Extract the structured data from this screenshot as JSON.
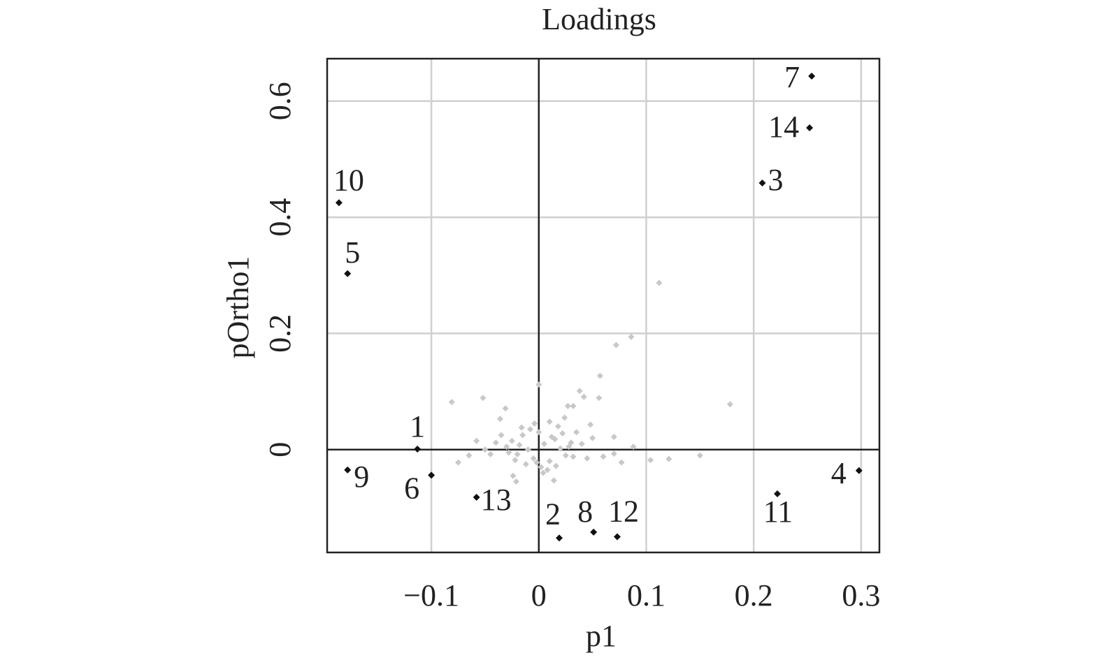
{
  "chart_data": {
    "type": "scatter",
    "title": "Loadings",
    "xlabel": "p1",
    "ylabel": "pOrtho1",
    "xlim": [
      -0.197,
      0.317
    ],
    "ylim": [
      -0.177,
      0.673
    ],
    "xticks": [
      {
        "value": -0.1,
        "label": "−0.1"
      },
      0,
      0.1,
      0.2,
      0.3
    ],
    "yticks": [
      0,
      0.2,
      0.4,
      0.6
    ],
    "grid": true,
    "series": [
      {
        "color": "#c8c8c8",
        "x": [
          0.112,
          0.178,
          0.15,
          0.121,
          0.104,
          0.086,
          0.072,
          0.057,
          0.0,
          -0.081,
          -0.052,
          0.038,
          0.056,
          0.042,
          0.07,
          0.088,
          0.077,
          0.07,
          -0.075,
          -0.065,
          -0.021,
          -0.036,
          -0.031,
          0.027,
          0.032,
          0.048,
          0.014,
          -0.03,
          -0.025,
          -0.02,
          -0.015,
          -0.01,
          -0.005,
          0.0,
          0.005,
          0.01,
          0.015,
          0.02,
          0.025,
          0.03,
          -0.028,
          -0.018,
          -0.008,
          0.002,
          0.012,
          0.022,
          0.032,
          -0.022,
          -0.012,
          0.008,
          0.018,
          0.028,
          0.04,
          0.045,
          -0.04,
          -0.045,
          0.035,
          -0.035,
          0.004,
          -0.004,
          0.016,
          -0.016,
          0.05,
          -0.05,
          0.06,
          -0.058,
          0.024,
          -0.024,
          0.01,
          -0.002
        ],
        "values": [
          0.287,
          0.078,
          -0.01,
          -0.016,
          -0.018,
          0.194,
          0.18,
          0.127,
          0.112,
          0.082,
          0.089,
          0.101,
          0.089,
          0.091,
          0.022,
          0.005,
          -0.022,
          -0.007,
          -0.022,
          -0.01,
          -0.055,
          0.053,
          0.071,
          0.075,
          0.075,
          0.043,
          -0.053,
          0.005,
          0.015,
          -0.008,
          0.025,
          0.0,
          -0.015,
          0.03,
          0.01,
          -0.02,
          0.018,
          0.002,
          -0.01,
          0.012,
          -0.005,
          0.008,
          0.035,
          -0.03,
          0.022,
          0.028,
          -0.012,
          -0.018,
          -0.025,
          -0.035,
          0.04,
          0.005,
          0.01,
          -0.015,
          0.012,
          -0.008,
          0.03,
          0.025,
          -0.04,
          0.045,
          -0.028,
          0.038,
          0.02,
          0.0,
          -0.012,
          0.015,
          0.055,
          -0.045,
          0.048,
          -0.022
        ]
      },
      {
        "color": "#111111",
        "x": [
          -0.113,
          0.019,
          0.208,
          0.298,
          -0.178,
          -0.1,
          0.254,
          0.051,
          -0.178,
          -0.186,
          0.222,
          0.073,
          -0.058,
          0.252
        ],
        "values": [
          0.001,
          -0.152,
          0.459,
          -0.036,
          0.303,
          -0.044,
          0.643,
          -0.142,
          -0.035,
          0.425,
          -0.076,
          -0.15,
          -0.082,
          0.554
        ],
        "labels": [
          "1",
          "2",
          "3",
          "4",
          "5",
          "6",
          "7",
          "8",
          "9",
          "10",
          "11",
          "12",
          "13",
          "14"
        ]
      }
    ]
  }
}
